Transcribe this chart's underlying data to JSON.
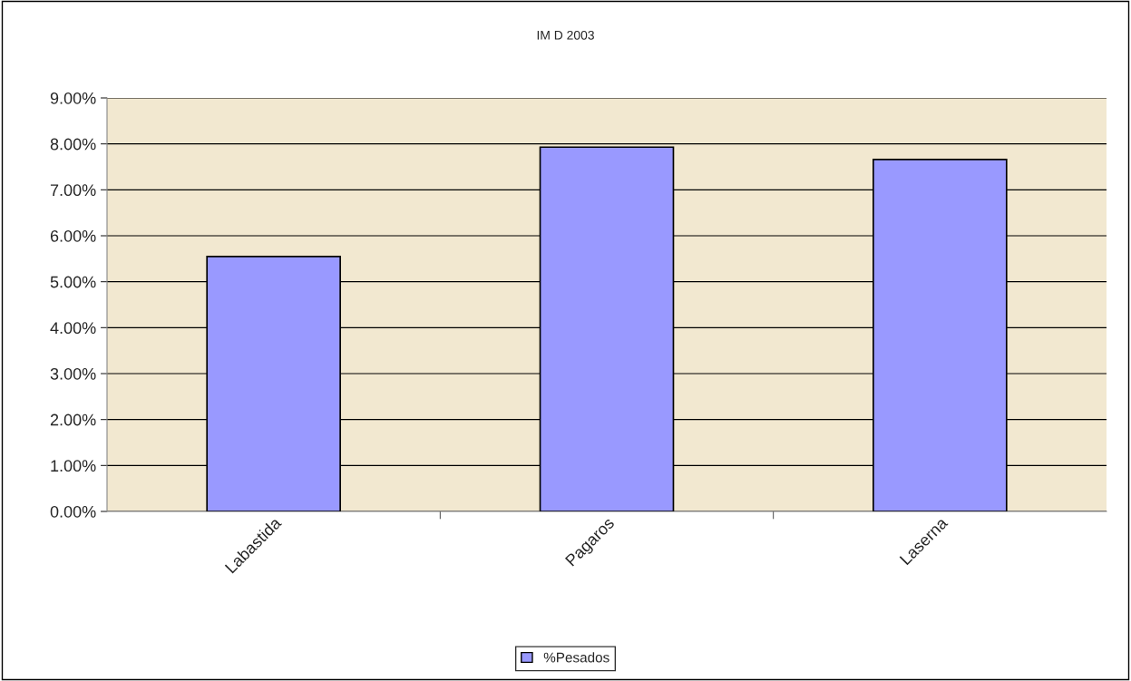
{
  "chart_data": {
    "type": "bar",
    "title": "IM D 2003",
    "categories": [
      "Labastida",
      "Pagaros",
      "Laserna"
    ],
    "series": [
      {
        "name": "%Pesados",
        "color": "#9999ff",
        "values": [
          5.55,
          7.93,
          7.66
        ]
      }
    ],
    "ylim": [
      0,
      9
    ],
    "yticks": [
      {
        "value": 0,
        "label": "0.00%"
      },
      {
        "value": 1,
        "label": "1.00%"
      },
      {
        "value": 2,
        "label": "2.00%"
      },
      {
        "value": 3,
        "label": "3.00%"
      },
      {
        "value": 4,
        "label": "4.00%"
      },
      {
        "value": 5,
        "label": "5.00%"
      },
      {
        "value": 6,
        "label": "6.00%"
      },
      {
        "value": 7,
        "label": "7.00%"
      },
      {
        "value": 8,
        "label": "8.00%"
      },
      {
        "value": 9,
        "label": "9.00%"
      }
    ],
    "grid": "y",
    "legend": "bottom"
  }
}
